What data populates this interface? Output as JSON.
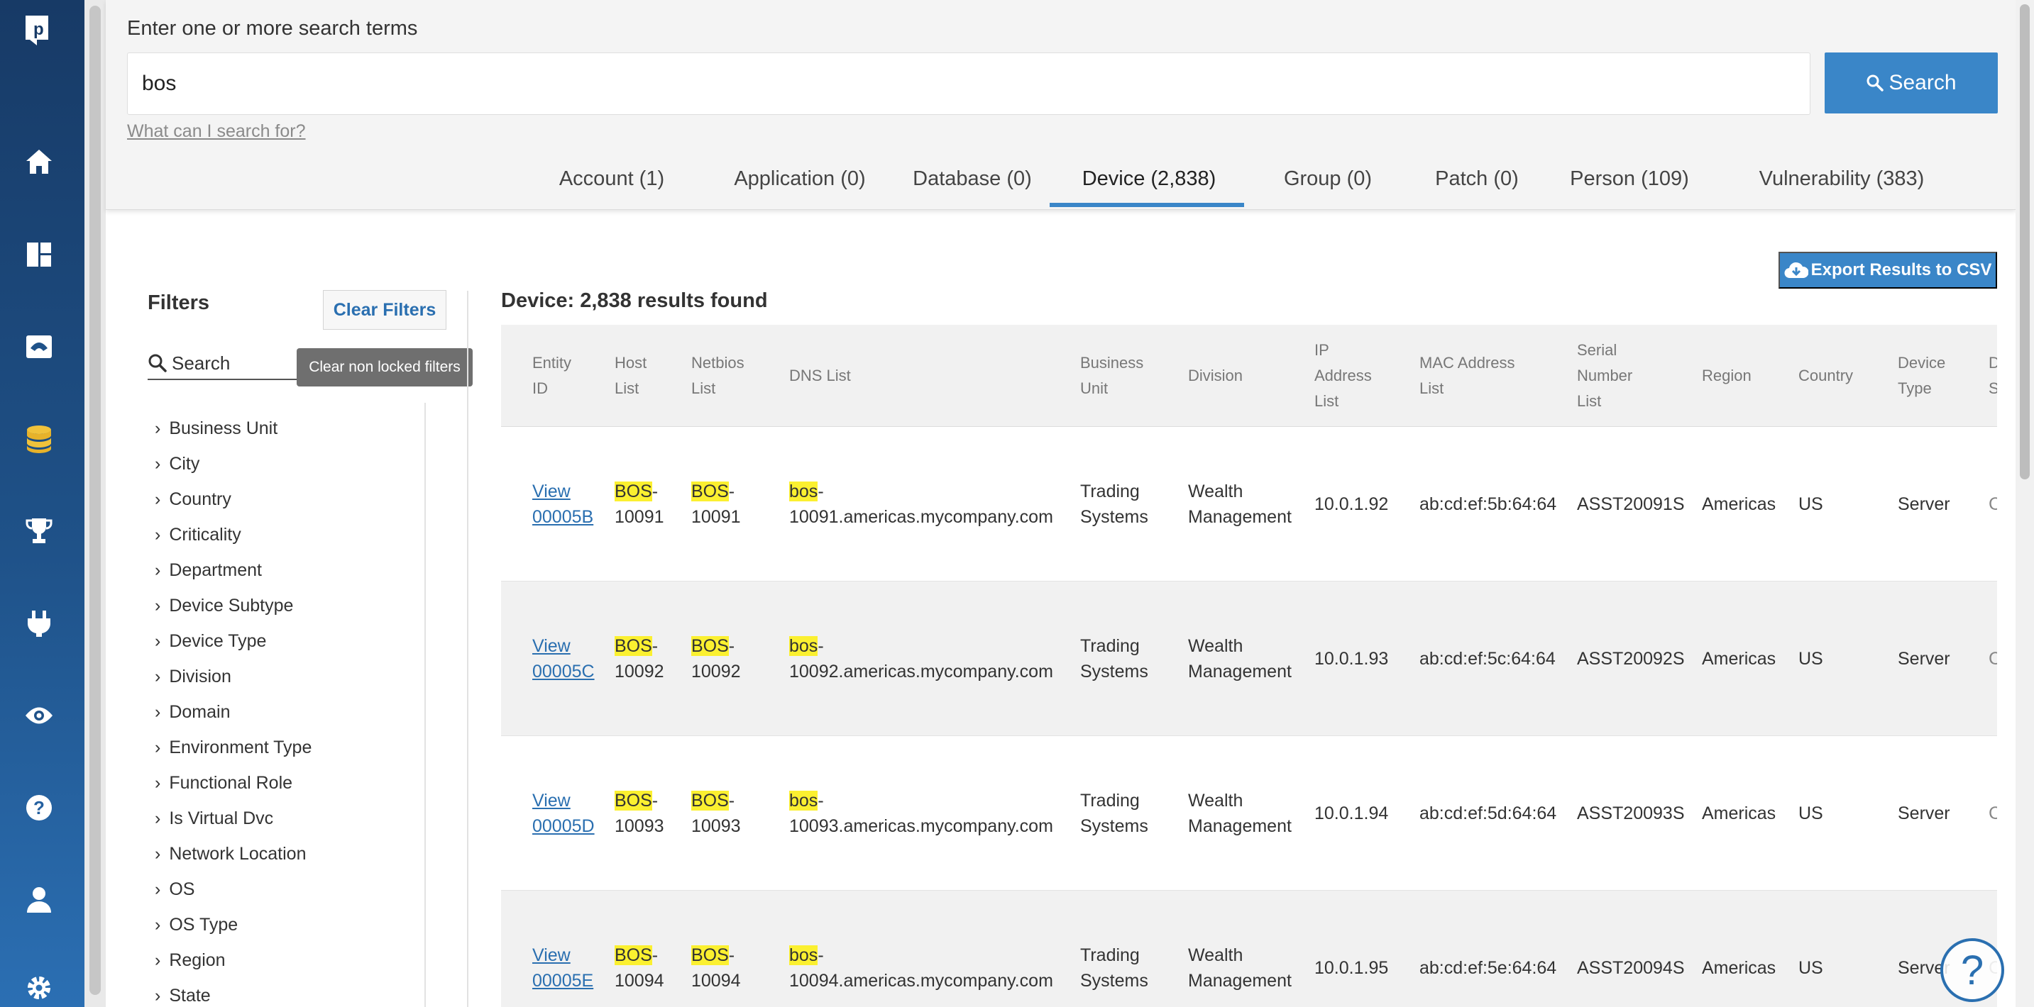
{
  "search": {
    "label": "Enter one or more search terms",
    "value": "bos",
    "button_label": "Search",
    "help_link": "What can I search for?"
  },
  "tabs": [
    {
      "label": "Account (1)"
    },
    {
      "label": "Application (0)"
    },
    {
      "label": "Database (0)"
    },
    {
      "label": "Device (2,838)",
      "active": true
    },
    {
      "label": "Group (0)"
    },
    {
      "label": "Patch (0)"
    },
    {
      "label": "Person (109)"
    },
    {
      "label": "Vulnerability (383)"
    }
  ],
  "filters": {
    "title": "Filters",
    "clear_label": "Clear Filters",
    "tooltip": "Clear non locked filters",
    "search_placeholder": "Search",
    "items": [
      "Business Unit",
      "City",
      "Country",
      "Criticality",
      "Department",
      "Device Subtype",
      "Device Type",
      "Division",
      "Domain",
      "Environment Type",
      "Functional Role",
      "Is Virtual Dvc",
      "Network Location",
      "OS",
      "OS Type",
      "Region",
      "State"
    ]
  },
  "results": {
    "export_label": "Export Results to CSV",
    "title": "Device: 2,838 results found",
    "columns": [
      [
        "Entity",
        "ID"
      ],
      [
        "Host",
        "List"
      ],
      [
        "Netbios",
        "List"
      ],
      [
        "DNS List"
      ],
      [
        "Business",
        "Unit"
      ],
      [
        "Division"
      ],
      [
        "IP",
        "Address",
        "List"
      ],
      [
        "MAC Address",
        "List"
      ],
      [
        "Serial",
        "Number",
        "List"
      ],
      [
        "Region"
      ],
      [
        "Country"
      ],
      [
        "Device",
        "Type"
      ],
      [
        "D",
        "S"
      ]
    ],
    "rows": [
      {
        "view": "View",
        "id": "00005B",
        "host_hl": "BOS",
        "host_rest": "-",
        "host_num": "10091",
        "nb_hl": "BOS",
        "nb_rest": "-",
        "nb_num": "10091",
        "dns_hl": "bos",
        "dns_rest": "-",
        "dns_domain": "10091.americas.mycompany.com",
        "bu1": "Trading",
        "bu2": "Systems",
        "div1": "Wealth",
        "div2": "Management",
        "ip": "10.0.1.92",
        "mac": "ab:cd:ef:5b:64:64",
        "serial": "ASST20091S",
        "region": "Americas",
        "country": "US",
        "type": "Server",
        "trunc": "C"
      },
      {
        "view": "View",
        "id": "00005C",
        "host_hl": "BOS",
        "host_rest": "-",
        "host_num": "10092",
        "nb_hl": "BOS",
        "nb_rest": "-",
        "nb_num": "10092",
        "dns_hl": "bos",
        "dns_rest": "-",
        "dns_domain": "10092.americas.mycompany.com",
        "bu1": "Trading",
        "bu2": "Systems",
        "div1": "Wealth",
        "div2": "Management",
        "ip": "10.0.1.93",
        "mac": "ab:cd:ef:5c:64:64",
        "serial": "ASST20092S",
        "region": "Americas",
        "country": "US",
        "type": "Server",
        "trunc": "C"
      },
      {
        "view": "View",
        "id": "00005D",
        "host_hl": "BOS",
        "host_rest": "-",
        "host_num": "10093",
        "nb_hl": "BOS",
        "nb_rest": "-",
        "nb_num": "10093",
        "dns_hl": "bos",
        "dns_rest": "-",
        "dns_domain": "10093.americas.mycompany.com",
        "bu1": "Trading",
        "bu2": "Systems",
        "div1": "Wealth",
        "div2": "Management",
        "ip": "10.0.1.94",
        "mac": "ab:cd:ef:5d:64:64",
        "serial": "ASST20093S",
        "region": "Americas",
        "country": "US",
        "type": "Server",
        "trunc": "C"
      },
      {
        "view": "View",
        "id": "00005E",
        "host_hl": "BOS",
        "host_rest": "-",
        "host_num": "10094",
        "nb_hl": "BOS",
        "nb_rest": "-",
        "nb_num": "10094",
        "dns_hl": "bos",
        "dns_rest": "-",
        "dns_domain": "10094.americas.mycompany.com",
        "bu1": "Trading",
        "bu2": "Systems",
        "div1": "Wealth",
        "div2": "Management",
        "ip": "10.0.1.95",
        "mac": "ab:cd:ef:5e:64:64",
        "serial": "ASST20094S",
        "region": "Americas",
        "country": "US",
        "type": "Server",
        "trunc": "C"
      }
    ]
  },
  "nav_icons": [
    "logo-icon",
    "home-icon",
    "dashboard-icon",
    "inbox-icon",
    "database-icon",
    "trophy-icon",
    "plug-icon",
    "eye-icon",
    "help-icon",
    "user-icon",
    "gear-icon"
  ],
  "help_fab": "?",
  "colors": {
    "accent": "#3a86c8",
    "nav_dark": "#173a66",
    "highlight": "#fbf030",
    "link": "#2a6fb0"
  }
}
